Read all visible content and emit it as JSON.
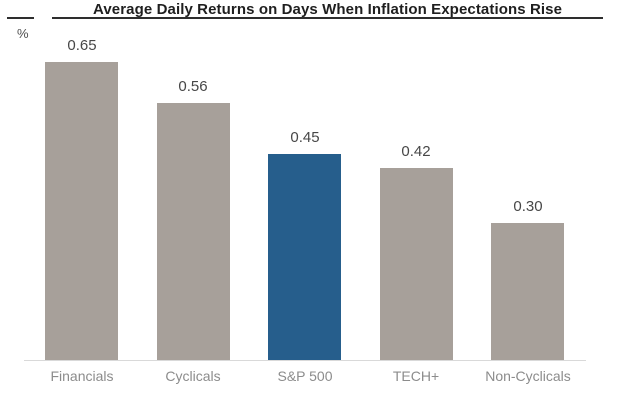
{
  "chart_data": {
    "type": "bar",
    "title": "Average Daily Returns on Days When Inflation Expectations Rise",
    "unit_label": "%",
    "categories": [
      "Financials",
      "Cyclicals",
      "S&P 500",
      "TECH+",
      "Non-Cyclicals"
    ],
    "values": [
      0.65,
      0.56,
      0.45,
      0.42,
      0.3
    ],
    "value_labels": [
      "0.65",
      "0.56",
      "0.45",
      "0.42",
      "0.30"
    ],
    "highlight_index": 2,
    "ylim": [
      0,
      0.75
    ],
    "grid": false,
    "legend": false,
    "colors": {
      "background": "#ffffff",
      "bar_default": "#a7a09a",
      "bar_highlight": "#265e8c",
      "axis_line": "#d9d9d9",
      "title_text": "#1f1f1f",
      "title_underline": "#2e2e2e",
      "value_label": "#474747",
      "category_label": "#8c8c8c",
      "unit_label": "#4f4f4f"
    }
  }
}
